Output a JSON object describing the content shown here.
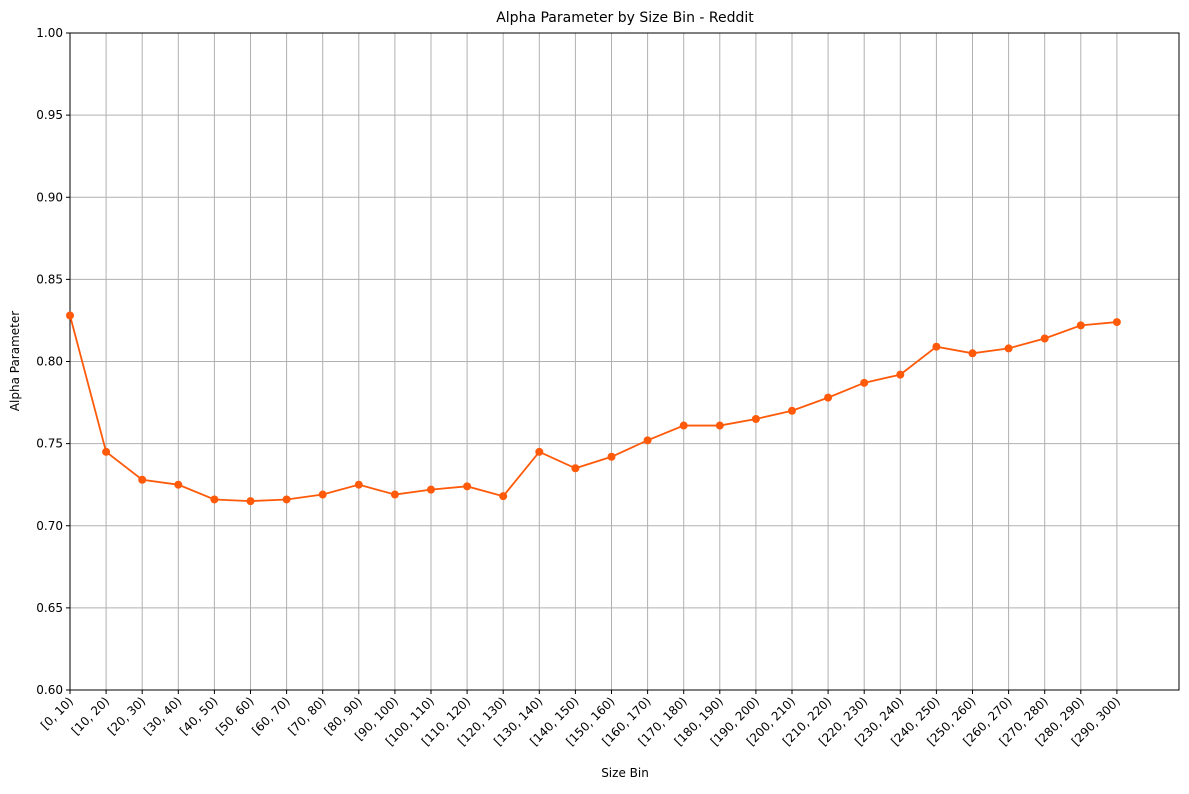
{
  "chart_data": {
    "type": "line",
    "title": "Alpha Parameter by Size Bin - Reddit",
    "xlabel": "Size Bin",
    "ylabel": "Alpha Parameter",
    "ylim": [
      0.6,
      1.0
    ],
    "yticks": [
      "0.60",
      "0.65",
      "0.70",
      "0.75",
      "0.80",
      "0.85",
      "0.90",
      "0.95",
      "1.00"
    ],
    "grid": true,
    "legend": "none",
    "colors": {
      "line": "#ff5a0a",
      "grid": "#b0b0b0"
    },
    "categories": [
      "[0, 10)",
      "[10, 20)",
      "[20, 30)",
      "[30, 40)",
      "[40, 50)",
      "[50, 60)",
      "[60, 70)",
      "[70, 80)",
      "[80, 90)",
      "[90, 100)",
      "[100, 110)",
      "[110, 120)",
      "[120, 130)",
      "[130, 140)",
      "[140, 150)",
      "[150, 160)",
      "[160, 170)",
      "[170, 180)",
      "[180, 190)",
      "[190, 200)",
      "[200, 210)",
      "[210, 220)",
      "[220, 230)",
      "[230, 240)",
      "[240, 250)",
      "[250, 260)",
      "[260, 270)",
      "[270, 280)",
      "[280, 290)",
      "[290, 300)"
    ],
    "values": [
      0.828,
      0.745,
      0.728,
      0.725,
      0.716,
      0.715,
      0.716,
      0.719,
      0.725,
      0.719,
      0.722,
      0.724,
      0.718,
      0.745,
      0.735,
      0.742,
      0.752,
      0.761,
      0.761,
      0.765,
      0.77,
      0.778,
      0.787,
      0.792,
      0.809,
      0.805,
      0.808,
      0.814,
      0.822,
      0.824
    ]
  }
}
